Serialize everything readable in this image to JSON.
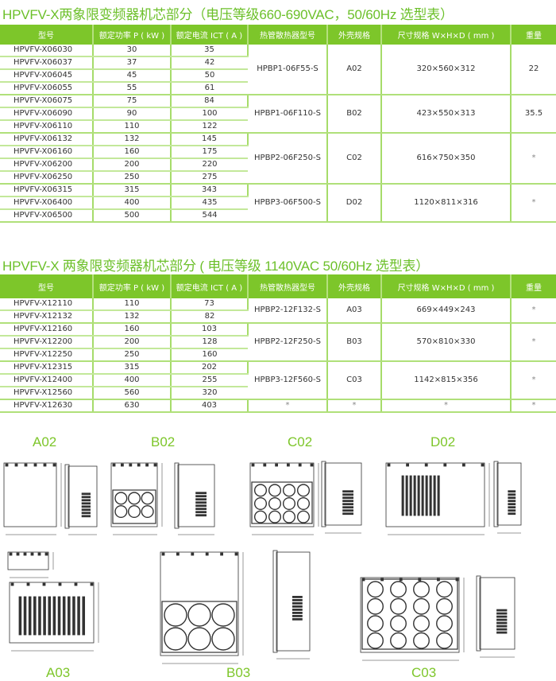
{
  "colors": {
    "accent": "#7dc62a",
    "title": "#6cc02a"
  },
  "table1": {
    "title": "HPVFV-X两象限变频器机芯部分（电压等级660-690VAC，50/60Hz  选型表）",
    "headers": [
      "型号",
      "额定功率 P ( kW )",
      "额定电流  ICT ( A )",
      "热管散热器型号",
      "外壳规格",
      "尺寸规格 W×H×D ( mm )",
      "重量"
    ],
    "groups": [
      {
        "heatsink": "HPBP1-06F55-S",
        "case": "A02",
        "size": "320×560×312",
        "weight": "22",
        "rows": [
          [
            "HPVFV-X06030",
            "30",
            "35"
          ],
          [
            "HPVFV-X06037",
            "37",
            "42"
          ],
          [
            "HPVFV-X06045",
            "45",
            "50"
          ],
          [
            "HPVFV-X06055",
            "55",
            "61"
          ]
        ]
      },
      {
        "heatsink": "HPBP1-06F110-S",
        "case": "B02",
        "size": "423×550×313",
        "weight": "35.5",
        "rows": [
          [
            "HPVFV-X06075",
            "75",
            "84"
          ],
          [
            "HPVFV-X06090",
            "90",
            "100"
          ],
          [
            "HPVFV-X06110",
            "110",
            "122"
          ]
        ]
      },
      {
        "heatsink": "HPBP2-06F250-S",
        "case": "C02",
        "size": "616×750×350",
        "weight": "*",
        "rows": [
          [
            "HPVFV-X06132",
            "132",
            "145"
          ],
          [
            "HPVFV-X06160",
            "160",
            "175"
          ],
          [
            "HPVFV-X06200",
            "200",
            "220"
          ],
          [
            "HPVFV-X06250",
            "250",
            "275"
          ]
        ]
      },
      {
        "heatsink": "HPBP3-06F500-S",
        "case": "D02",
        "size": "1120×811×316",
        "weight": "*",
        "rows": [
          [
            "HPVFV-X06315",
            "315",
            "343"
          ],
          [
            "HPVFV-X06400",
            "400",
            "435"
          ],
          [
            "HPVFV-X06500",
            "500",
            "544"
          ]
        ]
      }
    ]
  },
  "table2": {
    "title": "HPVFV-X 两象限变频器机芯部分 ( 电压等级 1140VAC 50/60Hz 选型表）",
    "headers": [
      "型号",
      "额定功率 P ( kW )",
      "额定电流  ICT ( A )",
      "热管散热器型号",
      "外壳规格",
      "尺寸规格 W×H×D ( mm )",
      "重量"
    ],
    "groups": [
      {
        "heatsink": "HPBP2-12F132-S",
        "case": "A03",
        "size": "669×449×243",
        "weight": "*",
        "rows": [
          [
            "HPVFV-X12110",
            "110",
            "73"
          ],
          [
            "HPVFV-X12132",
            "132",
            "82"
          ]
        ]
      },
      {
        "heatsink": "HPBP2-12F250-S",
        "case": "B03",
        "size": "570×810×330",
        "weight": "*",
        "rows": [
          [
            "HPVFV-X12160",
            "160",
            "103"
          ],
          [
            "HPVFV-X12200",
            "200",
            "128"
          ],
          [
            "HPVFV-X12250",
            "250",
            "160"
          ]
        ]
      },
      {
        "heatsink": "HPBP3-12F560-S",
        "case": "C03",
        "size": "1142×815×356",
        "weight": "*",
        "rows": [
          [
            "HPVFV-X12315",
            "315",
            "202"
          ],
          [
            "HPVFV-X12400",
            "400",
            "255"
          ],
          [
            "HPVFV-X12560",
            "560",
            "320"
          ]
        ]
      },
      {
        "heatsink": "*",
        "case": "*",
        "size": "*",
        "weight": "*",
        "rows": [
          [
            "HPVFV-X12630",
            "630",
            "403"
          ]
        ]
      }
    ]
  },
  "drawings": [
    {
      "label": "A02",
      "style": "plain"
    },
    {
      "label": "B02",
      "style": "circles-3x2"
    },
    {
      "label": "C02",
      "style": "circles-4x3"
    },
    {
      "label": "D02",
      "style": "vents"
    },
    {
      "label": "A03",
      "style": "vents-wide"
    },
    {
      "label": "B03",
      "style": "circles-3x2-tall"
    },
    {
      "label": "C03",
      "style": "circles-4x4"
    }
  ]
}
